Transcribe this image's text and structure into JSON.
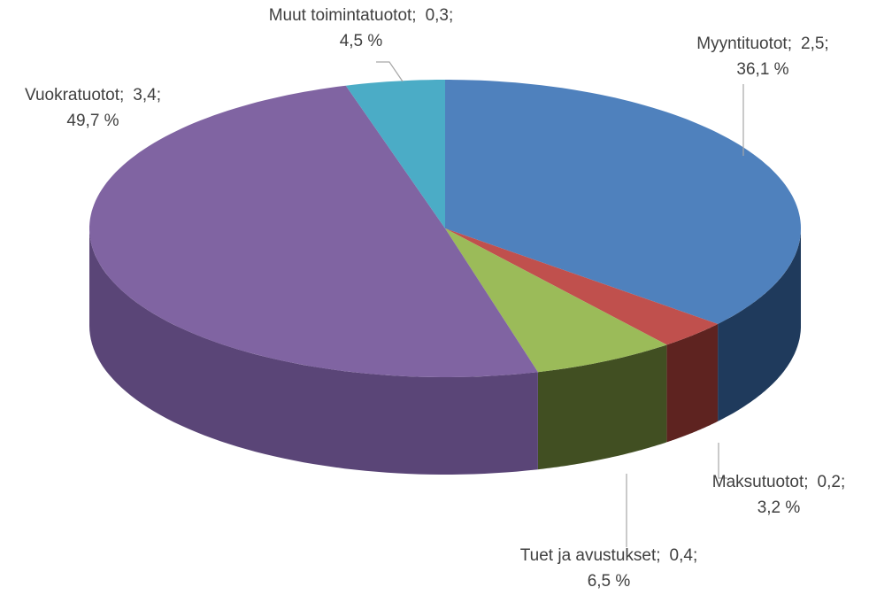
{
  "chart_data": {
    "type": "pie",
    "categories": [
      "Myyntituotot;",
      "Maksutuotot;",
      "Tuet ja avustukset;",
      "Vuokratuotot;",
      "Muut toimintatuotot;"
    ],
    "amounts": [
      2.5,
      0.2,
      0.4,
      3.4,
      0.3
    ],
    "amount_labels": [
      "2,5;",
      "0,2;",
      "0,4;",
      "3,4;",
      "0,3;"
    ],
    "values": [
      36.1,
      3.2,
      6.5,
      49.7,
      4.5
    ],
    "value_labels": [
      "36,1 %",
      "3,2 %",
      "6,5 %",
      "49,7 %",
      "4,5 %"
    ],
    "colors": [
      "#4f81bd",
      "#c0504d",
      "#9bbb59",
      "#8064a2",
      "#4bacc6"
    ],
    "side_colors": [
      "#1f3a5c",
      "#5e2320",
      "#414f22",
      "#5a4577",
      "#2a6f82"
    ]
  }
}
